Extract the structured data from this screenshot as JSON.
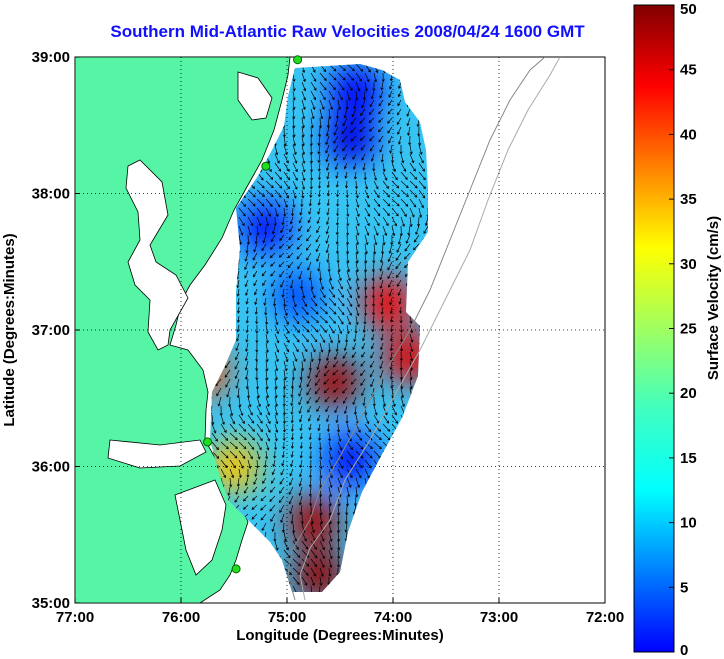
{
  "chart_data": {
    "type": "heatmap",
    "title": "Southern Mid-Atlantic Raw Velocities 2008/04/24 1600 GMT",
    "xlabel": "Longitude (Degrees:Minutes)",
    "ylabel": "Latitude (Degrees:Minutes)",
    "colorbar_label": "Surface Velocity (cm/s)",
    "xlim": [
      -77,
      -72
    ],
    "ylim": [
      35,
      39
    ],
    "clim": [
      0,
      50
    ],
    "x_ticks": [
      {
        "value": -77,
        "label": "77:00"
      },
      {
        "value": -76,
        "label": "76:00"
      },
      {
        "value": -75,
        "label": "75:00"
      },
      {
        "value": -74,
        "label": "74:00"
      },
      {
        "value": -73,
        "label": "73:00"
      },
      {
        "value": -72,
        "label": "72:00"
      }
    ],
    "y_ticks": [
      {
        "value": 39,
        "label": "39:00"
      },
      {
        "value": 38,
        "label": "38:00"
      },
      {
        "value": 37,
        "label": "37:00"
      },
      {
        "value": 36,
        "label": "36:00"
      },
      {
        "value": 35,
        "label": "35:00"
      }
    ],
    "colorbar_ticks": [
      {
        "value": 50,
        "label": "50"
      },
      {
        "value": 45,
        "label": "45"
      },
      {
        "value": 40,
        "label": "40"
      },
      {
        "value": 35,
        "label": "35"
      },
      {
        "value": 30,
        "label": "30"
      },
      {
        "value": 25,
        "label": "25"
      },
      {
        "value": 20,
        "label": "20"
      },
      {
        "value": 15,
        "label": "15"
      },
      {
        "value": 10,
        "label": "10"
      },
      {
        "value": 5,
        "label": "5"
      },
      {
        "value": 0,
        "label": "0"
      }
    ],
    "grid": true,
    "land_color": "#55f5a5",
    "colormap": "jet",
    "hf_radar_sites": [
      {
        "lon": -74.9,
        "lat": 38.98
      },
      {
        "lon": -75.2,
        "lat": 38.2
      },
      {
        "lon": -75.75,
        "lat": 36.18
      },
      {
        "lon": -75.48,
        "lat": 35.25
      }
    ],
    "velocity_hotspots": [
      {
        "lon": -74.05,
        "lat": 37.2,
        "speed": 44
      },
      {
        "lon": -74.55,
        "lat": 36.62,
        "speed": 48
      },
      {
        "lon": -73.85,
        "lat": 36.8,
        "speed": 45
      },
      {
        "lon": -74.75,
        "lat": 35.6,
        "speed": 48
      },
      {
        "lon": -74.7,
        "lat": 35.2,
        "speed": 49
      },
      {
        "lon": -75.8,
        "lat": 36.7,
        "speed": 40
      },
      {
        "lon": -75.5,
        "lat": 36.0,
        "speed": 34
      },
      {
        "lon": -74.35,
        "lat": 38.75,
        "speed": 6
      },
      {
        "lon": -74.4,
        "lat": 38.4,
        "speed": 5
      },
      {
        "lon": -75.2,
        "lat": 37.75,
        "speed": 7
      },
      {
        "lon": -74.4,
        "lat": 36.05,
        "speed": 7
      },
      {
        "lon": -74.9,
        "lat": 37.25,
        "speed": 10
      }
    ]
  }
}
